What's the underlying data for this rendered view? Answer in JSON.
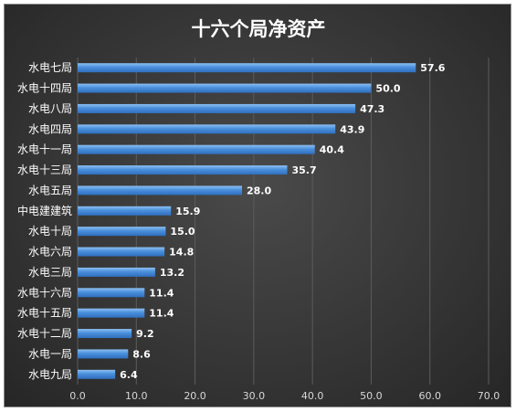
{
  "chart_data": {
    "type": "bar",
    "orientation": "horizontal",
    "title": "十六个局净资产",
    "categories": [
      "水电七局",
      "水电十四局",
      "水电八局",
      "水电四局",
      "水电十一局",
      "水电十三局",
      "水电五局",
      "中电建建筑",
      "水电十局",
      "水电六局",
      "水电三局",
      "水电十六局",
      "水电十五局",
      "水电十二局",
      "水电一局",
      "水电九局"
    ],
    "values": [
      57.6,
      50.0,
      47.3,
      43.9,
      40.4,
      35.7,
      28.0,
      15.9,
      15.0,
      14.8,
      13.2,
      11.4,
      11.4,
      9.2,
      8.6,
      6.4
    ],
    "value_labels": [
      "57.6",
      "50.0",
      "47.3",
      "43.9",
      "40.4",
      "35.7",
      "28.0",
      "15.9",
      "15.0",
      "14.8",
      "13.2",
      "11.4",
      "11.4",
      "9.2",
      "8.6",
      "6.4"
    ],
    "xlim": [
      0,
      70
    ],
    "x_ticks": [
      0,
      10,
      20,
      30,
      40,
      50,
      60,
      70
    ],
    "x_tick_labels": [
      "0.0",
      "10.0",
      "20.0",
      "30.0",
      "40.0",
      "50.0",
      "60.0",
      "70.0"
    ],
    "xlabel": "",
    "ylabel": "",
    "grid": true,
    "legend": "none",
    "colors": {
      "bar": "#4a8fdc",
      "bar_highlight": "#8cc0f2",
      "background": "#3a3a3a",
      "text": "#ffffff"
    }
  }
}
